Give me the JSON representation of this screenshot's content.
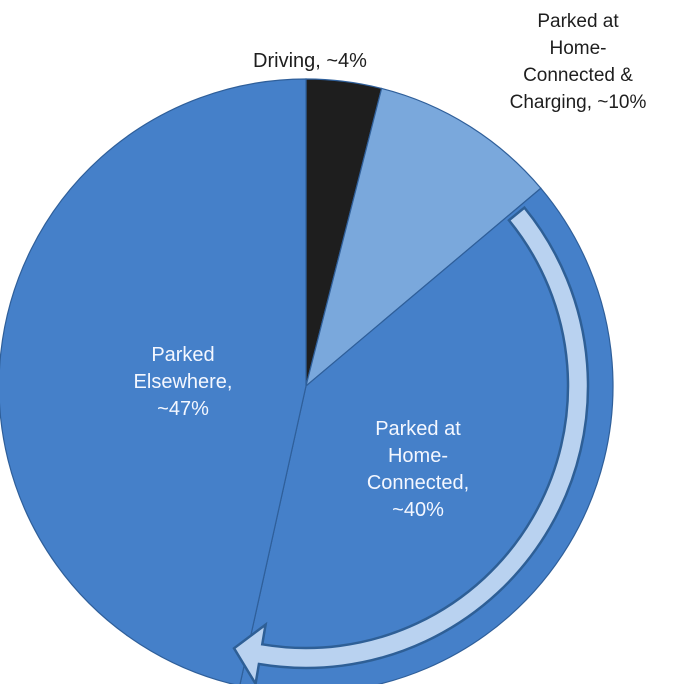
{
  "chart_data": {
    "type": "pie",
    "title": "",
    "slices": [
      {
        "label": "Driving, ~4%",
        "value": 4,
        "color": "#1e1e1e"
      },
      {
        "label": "Parked at\nHome-\nConnected &\nCharging, ~10%",
        "value": 10,
        "color": "#7aa8dc"
      },
      {
        "label": "Parked at\nHome-\nConnected,\n~40%",
        "value": 40,
        "color": "#4580c9"
      },
      {
        "label": "Parked\nElsewhere,\n~47%",
        "value": 47,
        "color": "#4580c9"
      }
    ],
    "annotation": "arrow from Connected & Charging to Connected",
    "colors": {
      "slice_border": "#2f5f9a",
      "arrow_fill": "#b9d2f0",
      "arrow_stroke": "#2e5f96"
    }
  }
}
